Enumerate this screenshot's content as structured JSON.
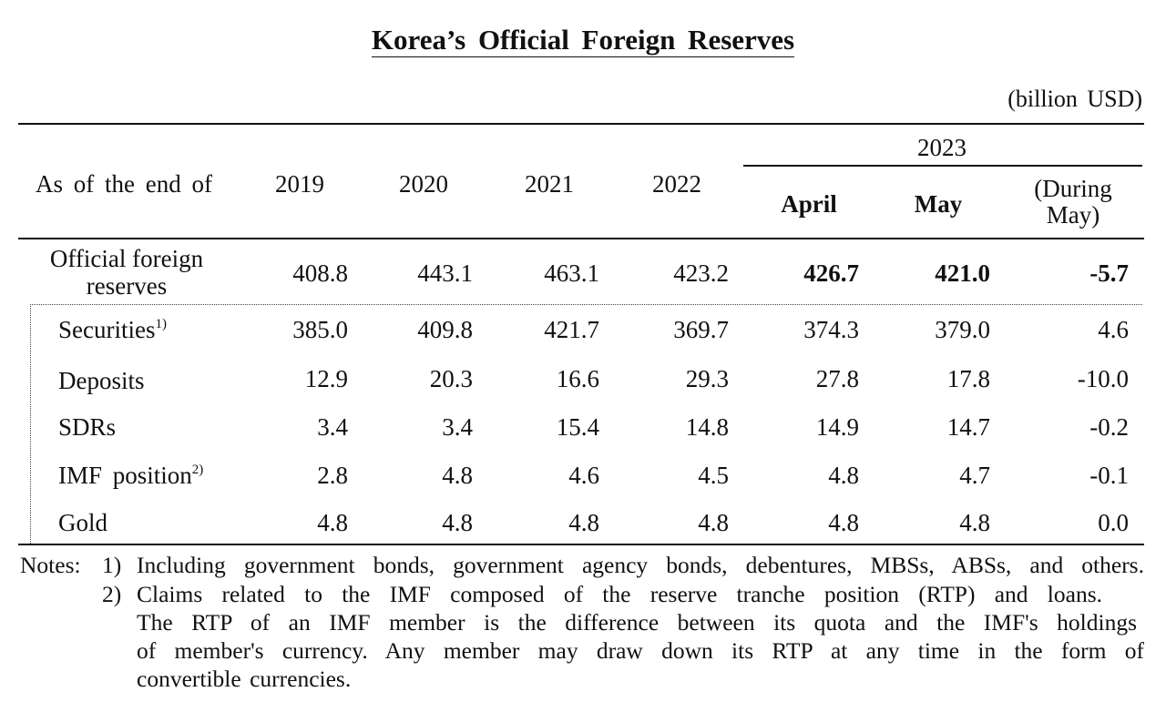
{
  "title": "Korea’s Official Foreign Reserves",
  "unit": "(billion USD)",
  "header": {
    "row_label": "As of the end of",
    "years": [
      "2019",
      "2020",
      "2021",
      "2022"
    ],
    "group_year": "2023",
    "april": "April",
    "may": "May",
    "during_may_line1": "(During",
    "during_may_line2": "May)"
  },
  "total": {
    "label_line1": "Official foreign",
    "label_line2": "reserves",
    "values": [
      "408.8",
      "443.1",
      "463.1",
      "423.2",
      "426.7",
      "421.0",
      "-5.7"
    ]
  },
  "rows": [
    {
      "label": "Securities",
      "note": "1)",
      "values": [
        "385.0",
        "409.8",
        "421.7",
        "369.7",
        "374.3",
        "379.0",
        "4.6"
      ]
    },
    {
      "label": "Deposits",
      "note": "",
      "values": [
        "12.9",
        "20.3",
        "16.6",
        "29.3",
        "27.8",
        "17.8",
        "-10.0"
      ]
    },
    {
      "label": "SDRs",
      "note": "",
      "values": [
        "3.4",
        "3.4",
        "15.4",
        "14.8",
        "14.9",
        "14.7",
        "-0.2"
      ]
    },
    {
      "label": "IMF position",
      "note": "2)",
      "values": [
        "2.8",
        "4.8",
        "4.6",
        "4.5",
        "4.8",
        "4.7",
        "-0.1"
      ]
    },
    {
      "label": "Gold",
      "note": "",
      "values": [
        "4.8",
        "4.8",
        "4.8",
        "4.8",
        "4.8",
        "4.8",
        "0.0"
      ]
    }
  ],
  "notes": {
    "prefix": "Notes:",
    "n1_num": "1)",
    "n1_text": "Including government bonds, government agency bonds, debentures, MBSs, ABSs, and others.",
    "n2_num": "2)",
    "n2_line1": "Claims related to the IMF composed of the reserve tranche position (RTP) and loans.",
    "n2_line2": "The RTP of an IMF member is the difference between its quota and the IMF's holdings",
    "n2_line3": "of member's currency. Any member may draw down its RTP at any time in the form of",
    "n2_line4": "convertible currencies."
  }
}
